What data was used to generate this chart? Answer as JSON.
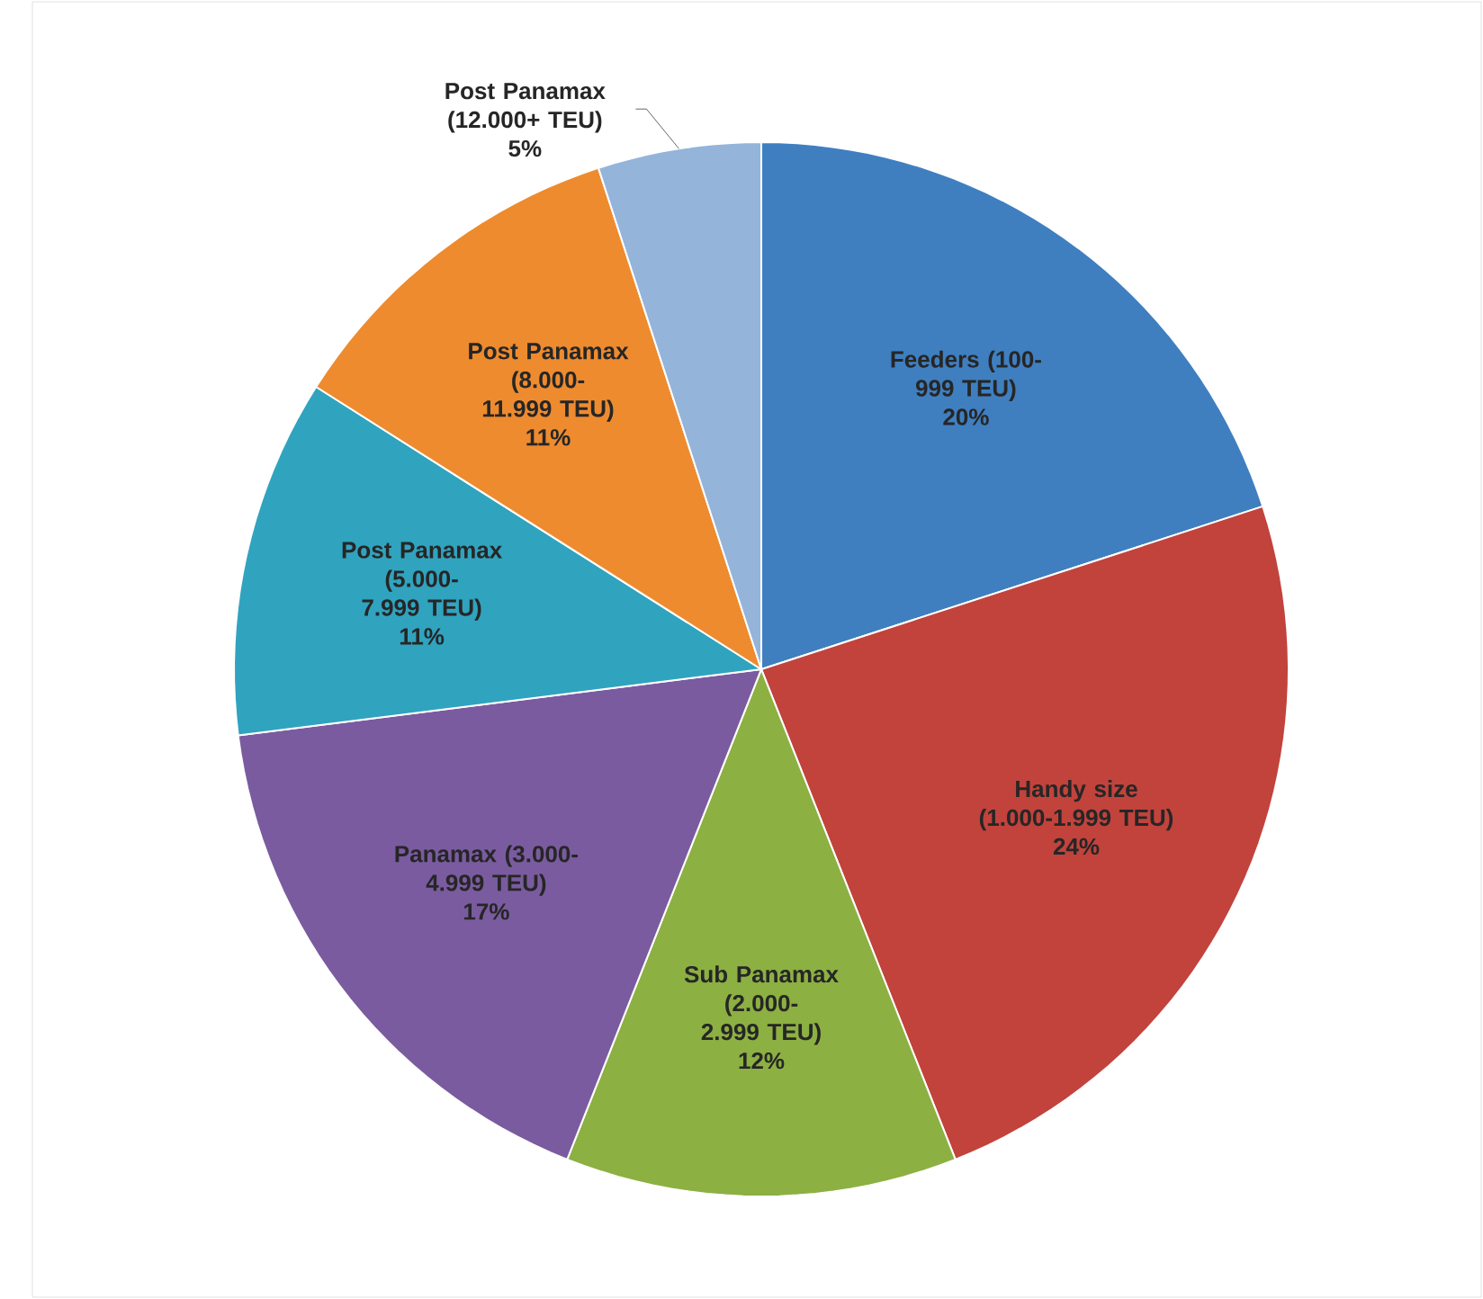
{
  "chart_data": {
    "type": "pie",
    "categories": [
      "Feeders (100-999 TEU)",
      "Handy size (1.000-1.999 TEU)",
      "Sub Panamax (2.000-2.999 TEU)",
      "Panamax (3.000-4.999 TEU)",
      "Post Panamax (5.000-7.999 TEU)",
      "Post Panamax (8.000-11.999 TEU)",
      "Post Panamax (12.000+ TEU)"
    ],
    "values": [
      20,
      24,
      12,
      17,
      11,
      11,
      5
    ],
    "value_labels": [
      "20%",
      "24%",
      "12%",
      "17%",
      "11%",
      "11%",
      "5%"
    ],
    "colors": [
      "#3f7fc0",
      "#c1433c",
      "#8cb042",
      "#7a5b9f",
      "#30a3bf",
      "#ee8b2f",
      "#94b4da"
    ]
  }
}
